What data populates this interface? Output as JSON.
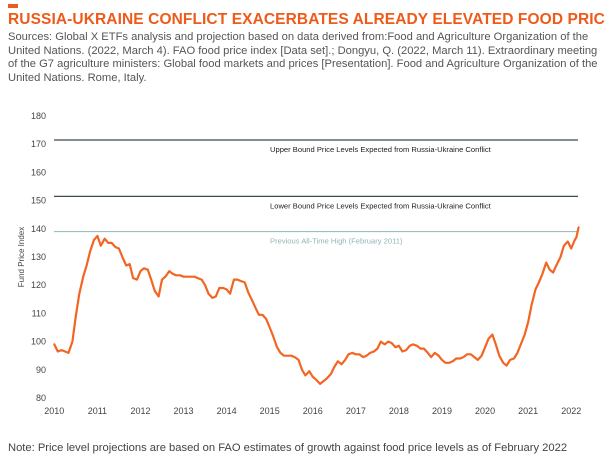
{
  "header": {
    "title": "RUSSIA-UKRAINE CONFLICT EXACERBATES ALREADY ELEVATED FOOD PRICES",
    "subtitle": "Sources: Global X ETFs analysis and projection based on data derived from:Food and Agriculture Organization of the United Nations. (2022, March 4). FAO food price index [Data set].; Dongyu, Q. (2022, March 11). Extraordinary meeting of the G7 agriculture ministers: Global food markets and prices [Presentation]. Food and Agriculture Organization of the United Nations. Rome, Italy."
  },
  "footer": {
    "note": "Note: Price level projections are based on FAO estimates of growth against food price levels as of February 2022"
  },
  "colors": {
    "accent": "#ee5a1a",
    "series": "#f26522",
    "bound_line": "#3a4a50",
    "all_time_high_line": "#8fb5b5"
  },
  "chart_data": {
    "type": "line",
    "ylabel": "Fund Price Index",
    "ylim": [
      80,
      180
    ],
    "yticks": [
      80,
      90,
      100,
      110,
      120,
      130,
      140,
      150,
      160,
      170,
      180
    ],
    "xlim": [
      2009.9,
      2022.25
    ],
    "xticks": [
      "2010",
      "2011",
      "2012",
      "2013",
      "2014",
      "2015",
      "2016",
      "2017",
      "2018",
      "2019",
      "2020",
      "2021",
      "2022"
    ],
    "grid": false,
    "reference_lines": [
      {
        "label": "Upper Bound Price Levels Expected from Russia-Ukraine Conflict",
        "value": 171.5,
        "color": "#3a4a50"
      },
      {
        "label": "Lower Bound Price Levels Expected from Russia-Ukraine Conflict",
        "value": 151.5,
        "color": "#3a4a50"
      },
      {
        "label": "Previous All-Time High (February 2011)",
        "value": 139,
        "color": "#8fb5b5"
      }
    ],
    "series": [
      {
        "color": "#f26522",
        "points": [
          [
            2010.0,
            99
          ],
          [
            2010.08,
            96.5
          ],
          [
            2010.17,
            97
          ],
          [
            2010.25,
            96.5
          ],
          [
            2010.33,
            96
          ],
          [
            2010.42,
            100
          ],
          [
            2010.5,
            109
          ],
          [
            2010.58,
            117
          ],
          [
            2010.67,
            123
          ],
          [
            2010.75,
            127
          ],
          [
            2010.83,
            132
          ],
          [
            2010.92,
            136
          ],
          [
            2011.0,
            137.5
          ],
          [
            2011.08,
            134
          ],
          [
            2011.17,
            136.5
          ],
          [
            2011.25,
            135
          ],
          [
            2011.33,
            135
          ],
          [
            2011.42,
            133.5
          ],
          [
            2011.5,
            133
          ],
          [
            2011.58,
            130
          ],
          [
            2011.67,
            127
          ],
          [
            2011.75,
            127.5
          ],
          [
            2011.83,
            122.5
          ],
          [
            2011.92,
            122
          ],
          [
            2012.0,
            125
          ],
          [
            2012.08,
            126
          ],
          [
            2012.17,
            125.5
          ],
          [
            2012.25,
            122
          ],
          [
            2012.33,
            118
          ],
          [
            2012.42,
            116
          ],
          [
            2012.5,
            122
          ],
          [
            2012.58,
            123
          ],
          [
            2012.67,
            125
          ],
          [
            2012.75,
            124
          ],
          [
            2012.83,
            123.5
          ],
          [
            2012.92,
            123.5
          ],
          [
            2013.0,
            123
          ],
          [
            2013.08,
            123
          ],
          [
            2013.17,
            123
          ],
          [
            2013.25,
            123
          ],
          [
            2013.33,
            122.5
          ],
          [
            2013.42,
            122
          ],
          [
            2013.5,
            120
          ],
          [
            2013.58,
            117
          ],
          [
            2013.67,
            115.5
          ],
          [
            2013.75,
            116
          ],
          [
            2013.83,
            119
          ],
          [
            2013.92,
            119
          ],
          [
            2014.0,
            118.5
          ],
          [
            2014.08,
            117
          ],
          [
            2014.17,
            122
          ],
          [
            2014.25,
            122
          ],
          [
            2014.33,
            121.5
          ],
          [
            2014.42,
            121
          ],
          [
            2014.5,
            117.5
          ],
          [
            2014.58,
            115
          ],
          [
            2014.67,
            112
          ],
          [
            2014.75,
            109.5
          ],
          [
            2014.83,
            109.5
          ],
          [
            2014.92,
            108
          ],
          [
            2015.0,
            105
          ],
          [
            2015.08,
            102
          ],
          [
            2015.17,
            98
          ],
          [
            2015.25,
            96
          ],
          [
            2015.33,
            95
          ],
          [
            2015.42,
            95
          ],
          [
            2015.5,
            95
          ],
          [
            2015.58,
            94.5
          ],
          [
            2015.67,
            93.5
          ],
          [
            2015.75,
            90
          ],
          [
            2015.83,
            88
          ],
          [
            2015.92,
            89.5
          ],
          [
            2016.0,
            87.5
          ],
          [
            2016.08,
            86.5
          ],
          [
            2016.17,
            85
          ],
          [
            2016.25,
            86
          ],
          [
            2016.33,
            87
          ],
          [
            2016.42,
            88.5
          ],
          [
            2016.5,
            91
          ],
          [
            2016.58,
            93
          ],
          [
            2016.67,
            92
          ],
          [
            2016.75,
            93.5
          ],
          [
            2016.83,
            95.5
          ],
          [
            2016.92,
            96
          ],
          [
            2017.0,
            95.5
          ],
          [
            2017.08,
            95.5
          ],
          [
            2017.17,
            94.5
          ],
          [
            2017.25,
            95
          ],
          [
            2017.33,
            96
          ],
          [
            2017.42,
            96.5
          ],
          [
            2017.5,
            97.5
          ],
          [
            2017.58,
            100
          ],
          [
            2017.67,
            99
          ],
          [
            2017.75,
            100
          ],
          [
            2017.83,
            99.5
          ],
          [
            2017.92,
            98
          ],
          [
            2018.0,
            98.5
          ],
          [
            2018.08,
            96.5
          ],
          [
            2018.17,
            97
          ],
          [
            2018.25,
            98.5
          ],
          [
            2018.33,
            99
          ],
          [
            2018.42,
            98.5
          ],
          [
            2018.5,
            97.5
          ],
          [
            2018.58,
            97.5
          ],
          [
            2018.67,
            96
          ],
          [
            2018.75,
            94.5
          ],
          [
            2018.83,
            96
          ],
          [
            2018.92,
            95
          ],
          [
            2019.0,
            93.5
          ],
          [
            2019.08,
            92.5
          ],
          [
            2019.17,
            92.5
          ],
          [
            2019.25,
            93
          ],
          [
            2019.33,
            94
          ],
          [
            2019.42,
            94
          ],
          [
            2019.5,
            94.5
          ],
          [
            2019.58,
            95.5
          ],
          [
            2019.67,
            95.5
          ],
          [
            2019.75,
            94.5
          ],
          [
            2019.83,
            93.5
          ],
          [
            2019.92,
            95
          ],
          [
            2020.0,
            98
          ],
          [
            2020.08,
            101
          ],
          [
            2020.17,
            102.5
          ],
          [
            2020.25,
            99
          ],
          [
            2020.33,
            95
          ],
          [
            2020.42,
            92.5
          ],
          [
            2020.5,
            91.5
          ],
          [
            2020.58,
            93.5
          ],
          [
            2020.67,
            94
          ],
          [
            2020.75,
            96
          ],
          [
            2020.83,
            99
          ],
          [
            2020.92,
            102.5
          ],
          [
            2021.0,
            107
          ],
          [
            2021.08,
            113
          ],
          [
            2021.17,
            118.5
          ],
          [
            2021.25,
            121
          ],
          [
            2021.33,
            124
          ],
          [
            2021.42,
            128
          ],
          [
            2021.5,
            125.5
          ],
          [
            2021.58,
            124.5
          ],
          [
            2021.67,
            127.5
          ],
          [
            2021.75,
            130
          ],
          [
            2021.83,
            134
          ],
          [
            2021.92,
            135.5
          ],
          [
            2022.0,
            133
          ],
          [
            2022.08,
            136
          ],
          [
            2022.12,
            137
          ],
          [
            2022.17,
            140.5
          ]
        ]
      }
    ]
  }
}
